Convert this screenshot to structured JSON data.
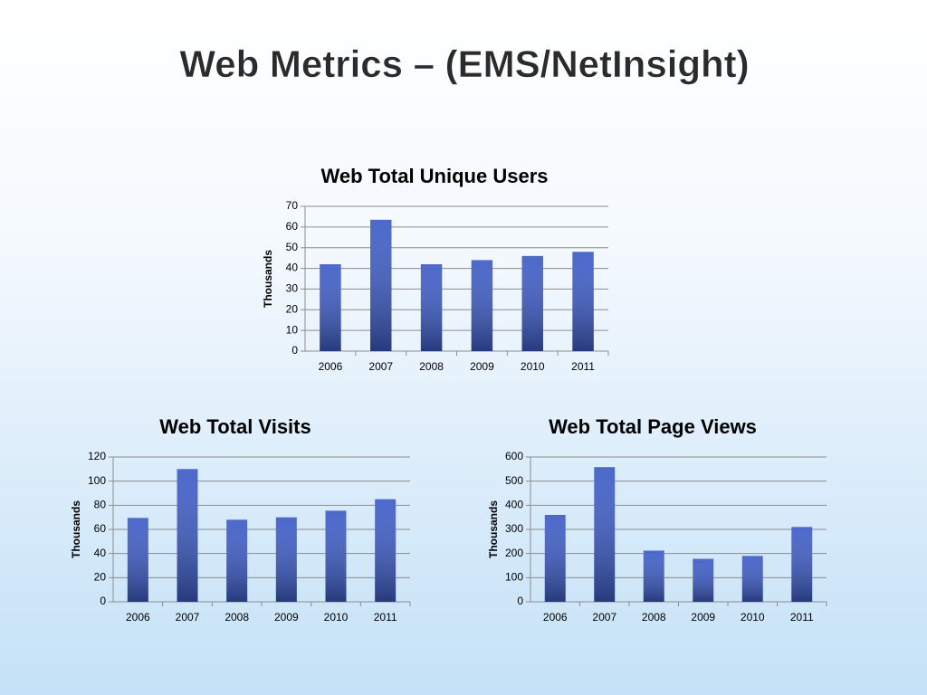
{
  "title": "Web Metrics – (EMS/NetInsight)",
  "chart_data": [
    {
      "type": "bar",
      "title": "Web Total Unique Users",
      "ylabel": "Thousands",
      "categories": [
        "2006",
        "2007",
        "2008",
        "2009",
        "2010",
        "2011"
      ],
      "values": [
        42,
        63.5,
        42,
        44,
        46,
        48
      ],
      "color": "#3d5cc6",
      "ylim": [
        0,
        70
      ],
      "yticks": [
        0,
        10,
        20,
        30,
        40,
        50,
        60,
        70
      ],
      "grid": true
    },
    {
      "type": "bar",
      "title": "Web Total Visits",
      "ylabel": "Thousands",
      "categories": [
        "2006",
        "2007",
        "2008",
        "2009",
        "2010",
        "2011"
      ],
      "values": [
        69.5,
        110,
        68,
        70,
        75.5,
        85
      ],
      "color": "#3d5cc6",
      "ylim": [
        0,
        120
      ],
      "yticks": [
        0,
        20,
        40,
        60,
        80,
        100,
        120
      ],
      "grid": true
    },
    {
      "type": "bar",
      "title": "Web Total Page Views",
      "ylabel": "Thousands",
      "categories": [
        "2006",
        "2007",
        "2008",
        "2009",
        "2010",
        "2011"
      ],
      "values": [
        360,
        558,
        212,
        178,
        190,
        310
      ],
      "color": "#3d5cc6",
      "ylim": [
        0,
        600
      ],
      "yticks": [
        0,
        100,
        200,
        300,
        400,
        500,
        600
      ],
      "grid": true
    }
  ]
}
